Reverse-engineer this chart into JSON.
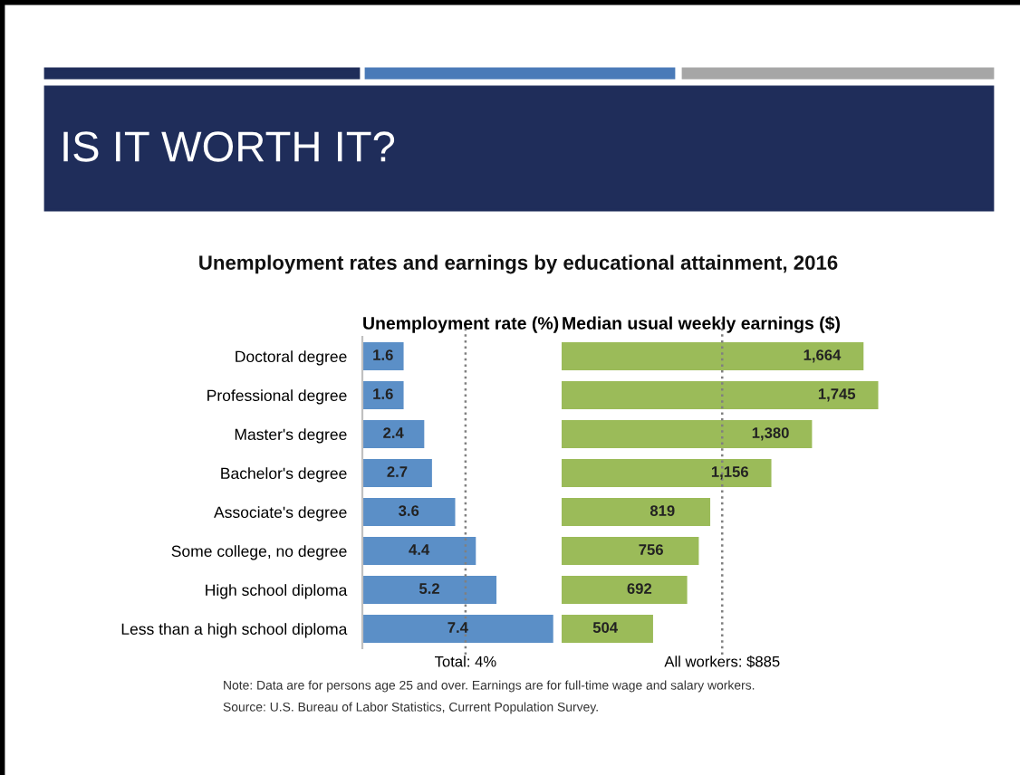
{
  "chart_data": [
    {
      "type": "bar",
      "orientation": "horizontal",
      "title": "Unemployment rate (%)",
      "annotations": [
        "IS IT WORTH IT?",
        "Unemployment rates and earnings by educational attainment, 2016",
        "Note: Data are for persons age 25 and over. Earnings are for full-time wage and salary workers.",
        "Source: U.S. Bureau of Labor Statistics, Current Population Survey."
      ],
      "categories": [
        "Doctoral degree",
        "Professional degree",
        "Master's degree",
        "Bachelor's degree",
        "Associate's degree",
        "Some college, no degree",
        "High school diploma",
        "Less than a high school diploma"
      ],
      "values": [
        1.6,
        1.6,
        2.4,
        2.7,
        3.6,
        4.4,
        5.2,
        7.4
      ],
      "color": "#5b8fc7",
      "tick_labels": "y",
      "data_labels": true,
      "ref_lines": [
        {
          "axis": "x",
          "value": 4,
          "label": "Total: 4%",
          "color": "#808080",
          "line_style": "dotted"
        }
      ]
    },
    {
      "type": "bar",
      "orientation": "horizontal",
      "title": "Median usual weekly earnings ($)",
      "categories": [
        null,
        null,
        null,
        null,
        null,
        null,
        null,
        null
      ],
      "values": [
        1664,
        1745,
        1380,
        1156,
        819,
        756,
        692,
        504
      ],
      "color": "#9bbb59",
      "value_labels": [
        "1,664",
        "1,745",
        "1,380",
        "1,156",
        "819",
        "756",
        "692",
        "504"
      ],
      "tick_labels": false,
      "ref_lines": [
        {
          "axis": "x",
          "value": 885,
          "label": "All workers: $885",
          "color": "#808080",
          "line_style": "dotted"
        }
      ]
    }
  ]
}
